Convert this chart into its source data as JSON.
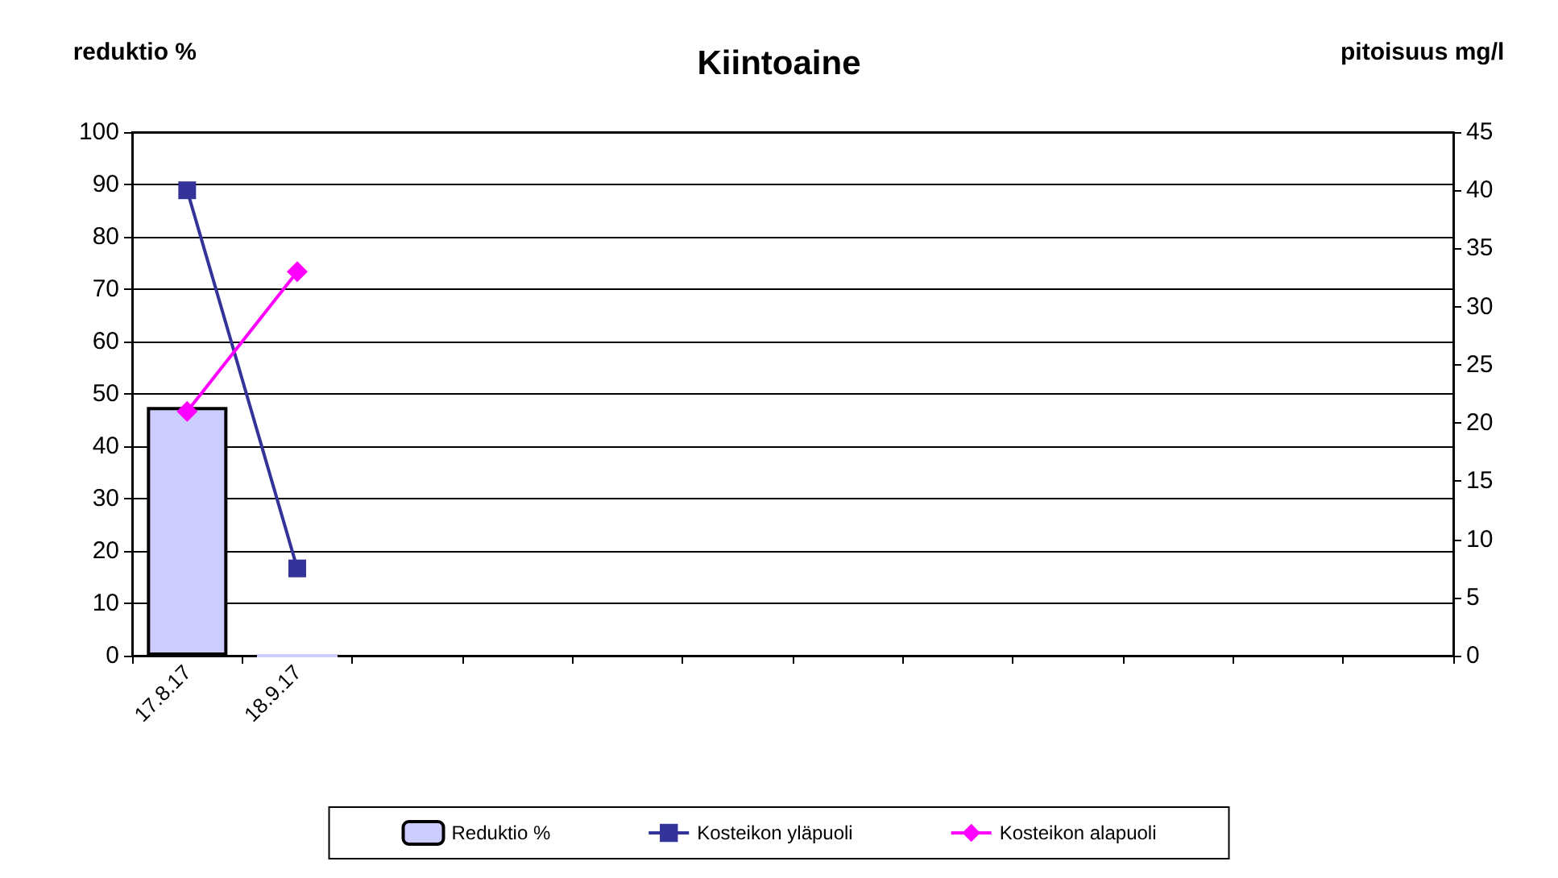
{
  "chart_data": {
    "type": "bar",
    "title": "Kiintoaine",
    "ylabel": "reduktio %",
    "y2label": "pitoisuus mg/l",
    "categories": [
      "17.8.17",
      "18.9.17",
      null,
      null,
      null,
      null,
      null,
      null,
      null,
      null,
      null,
      null
    ],
    "series": [
      {
        "name": "Reduktio %",
        "color": "#ccccff",
        "values": [
          47.5,
          0,
          null,
          null,
          null,
          null,
          null,
          null,
          null,
          null,
          null,
          null
        ]
      },
      {
        "name": "Kosteikon yläpuoli",
        "type": "line",
        "axis": "y2",
        "marker": "square",
        "color": "#333399",
        "values": [
          40,
          7.5,
          null,
          null,
          null,
          null,
          null,
          null,
          null,
          null,
          null,
          null
        ]
      },
      {
        "name": "Kosteikon alapuoli",
        "type": "line",
        "axis": "y2",
        "marker": "diamond",
        "color": "#ff00ff",
        "values": [
          21,
          33,
          null,
          null,
          null,
          null,
          null,
          null,
          null,
          null,
          null,
          null
        ]
      }
    ],
    "ylim": [
      0,
      100
    ],
    "yticks": [
      0,
      10,
      20,
      30,
      40,
      50,
      60,
      70,
      80,
      90,
      100
    ],
    "y2lim": [
      0,
      45
    ],
    "y2ticks": [
      0,
      5,
      10,
      15,
      20,
      25,
      30,
      35,
      40,
      45
    ],
    "grid": "y",
    "legend": "bottom"
  }
}
